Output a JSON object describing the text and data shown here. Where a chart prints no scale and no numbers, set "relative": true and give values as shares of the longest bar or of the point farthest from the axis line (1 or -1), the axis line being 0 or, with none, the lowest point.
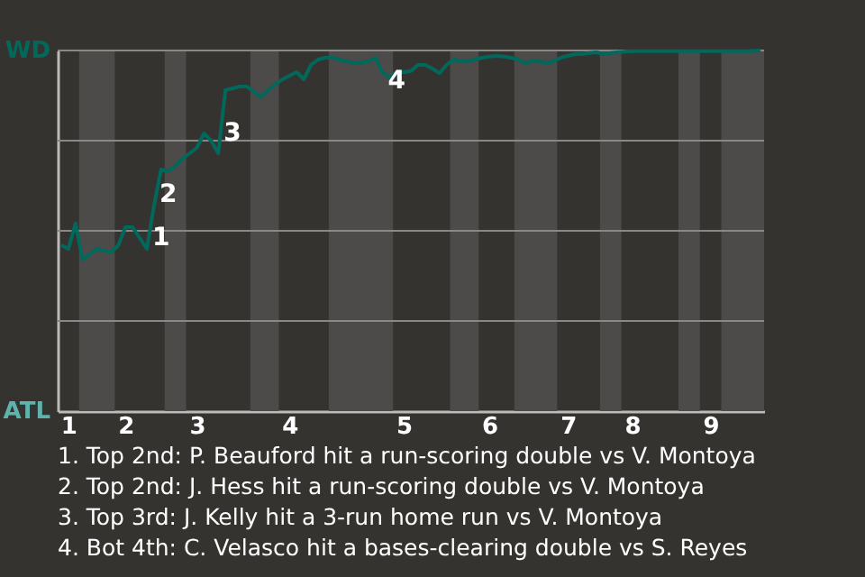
{
  "chart_data": {
    "type": "line",
    "relative": true,
    "categories": [
      null,
      "1",
      null,
      null,
      null,
      null,
      null,
      null,
      null,
      "2",
      null,
      null,
      null,
      null,
      null,
      null,
      null,
      null,
      null,
      "3",
      null,
      null,
      null,
      null,
      null,
      null,
      null,
      null,
      null,
      null,
      null,
      null,
      "4",
      null,
      null,
      null,
      null,
      null,
      null,
      null,
      null,
      null,
      null,
      null,
      null,
      null,
      null,
      null,
      "5",
      null,
      null,
      null,
      null,
      null,
      null,
      null,
      null,
      null,
      null,
      null,
      "6",
      null,
      null,
      null,
      null,
      null,
      null,
      null,
      null,
      null,
      null,
      "7",
      null,
      null,
      null,
      null,
      null,
      null,
      null,
      null,
      "8",
      null,
      null,
      null,
      null,
      null,
      null,
      null,
      null,
      null,
      null,
      "9",
      null,
      null,
      null,
      null,
      null,
      null,
      null
    ],
    "series": [
      {
        "color": "#00695c",
        "values": [
          0.46,
          0.45,
          0.52,
          0.42,
          0.435,
          0.45,
          0.445,
          0.44,
          0.46,
          0.51,
          0.51,
          0.48,
          0.45,
          0.57,
          0.67,
          0.665,
          0.68,
          0.7,
          0.715,
          0.73,
          0.77,
          0.75,
          0.715,
          0.89,
          0.895,
          0.9,
          0.9,
          0.885,
          0.87,
          0.89,
          0.905,
          0.92,
          0.93,
          0.94,
          0.92,
          0.96,
          0.975,
          0.98,
          0.98,
          0.975,
          0.97,
          0.965,
          0.965,
          0.97,
          0.98,
          0.94,
          0.925,
          0.94,
          0.94,
          0.943,
          0.96,
          0.96,
          0.95,
          0.937,
          0.96,
          0.975,
          0.97,
          0.97,
          0.975,
          0.98,
          0.983,
          0.985,
          0.983,
          0.98,
          0.975,
          0.965,
          0.97,
          0.97,
          0.965,
          0.97,
          0.98,
          0.985,
          0.99,
          0.99,
          0.993,
          0.995,
          0.99,
          0.993,
          0.995,
          0.997,
          0.998,
          0.998,
          0.998,
          0.998,
          0.998,
          0.998,
          0.998,
          0.998,
          0.998,
          0.998,
          0.998,
          0.998,
          0.998,
          0.998,
          0.998,
          0.998,
          0.998,
          0.999,
          1
        ]
      }
    ],
    "ref_lines": [
      {
        "axis": "y",
        "value": 0.25,
        "color": "#8a8886"
      },
      {
        "axis": "y",
        "value": 0.5,
        "color": "#8a8886"
      },
      {
        "axis": "y",
        "value": 0.75,
        "color": "#8a8886"
      },
      {
        "axis": "y",
        "value": 1,
        "color": "#8a8886"
      }
    ],
    "annotations": [
      "WD",
      "ATL",
      "1. Top 2nd: P. Beauford hit a run-scoring double vs V. Montoya",
      "2. Top 2nd: J. Hess hit a run-scoring double vs V. Montoya",
      "3. Top 3rd: J. Kelly hit a 3-run home run vs V. Montoya",
      "4. Bot 4th: C. Velasco hit a bases-clearing double vs S. Reyes",
      "1",
      "2",
      "3",
      "4"
    ]
  }
}
